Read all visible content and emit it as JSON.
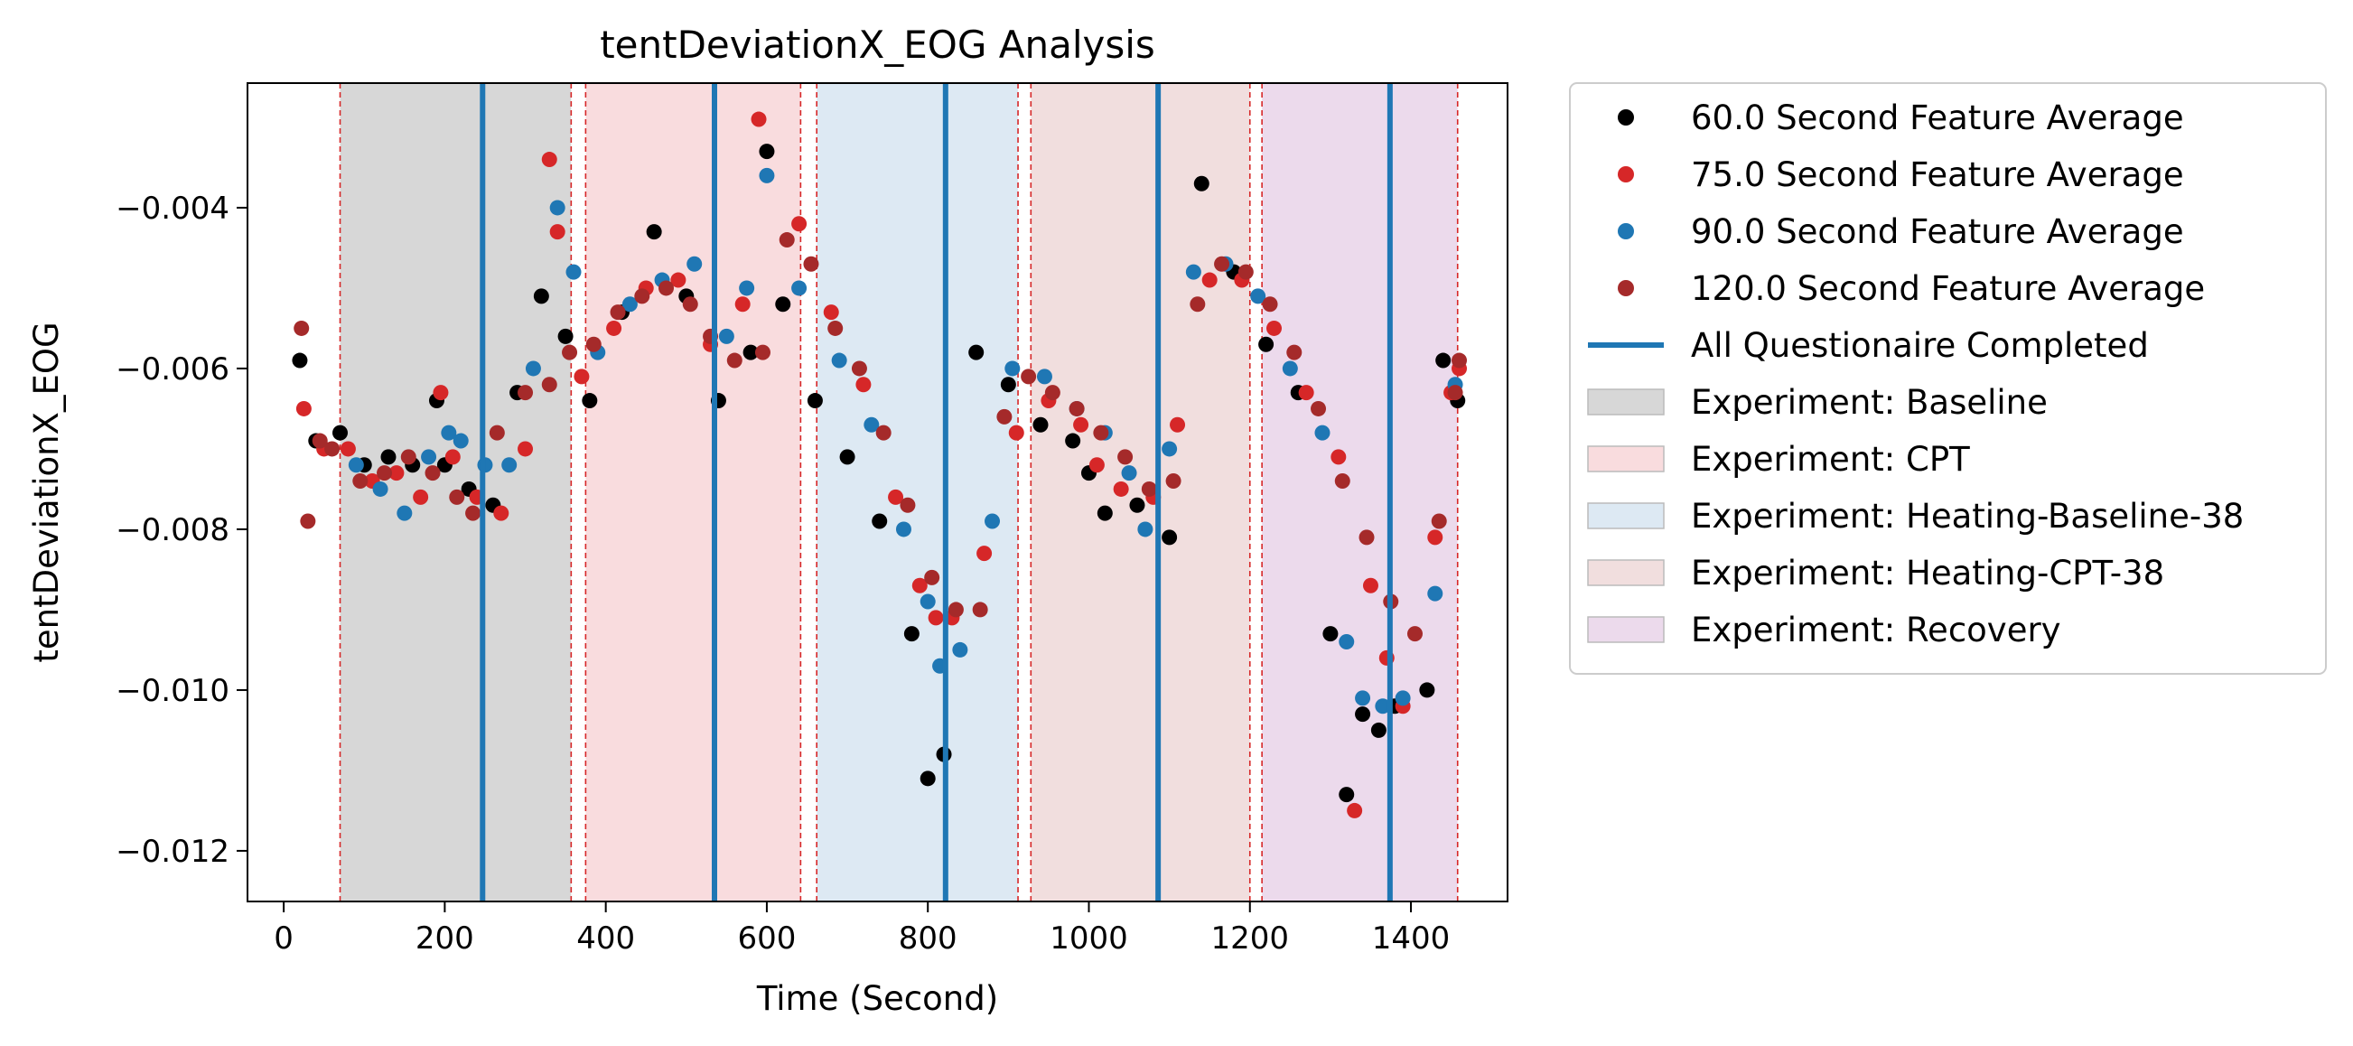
{
  "chart_data": {
    "type": "scatter",
    "title": "tentDeviationX_EOG Analysis",
    "xlabel": "Time (Second)",
    "ylabel": "tentDeviationX_EOG",
    "xlim": [
      -45,
      1520
    ],
    "ylim": [
      -0.01263,
      -0.00245
    ],
    "xticks": [
      0,
      200,
      400,
      600,
      800,
      1000,
      1200,
      1400
    ],
    "yticks": [
      -0.012,
      -0.01,
      -0.008,
      -0.006,
      -0.004
    ],
    "xtick_labels": [
      "0",
      "200",
      "400",
      "600",
      "800",
      "1000",
      "1200",
      "1400"
    ],
    "ytick_labels": [
      "−0.012",
      "−0.010",
      "−0.008",
      "−0.006",
      "−0.004"
    ],
    "grid": false,
    "legend_position": "outside-right",
    "phases": [
      {
        "label": "Experiment: Baseline",
        "start": 70,
        "end": 357,
        "color": "#d7d7d7"
      },
      {
        "label": "Experiment: CPT",
        "start": 375,
        "end": 642,
        "color": "#f9dcde"
      },
      {
        "label": "Experiment: Heating-Baseline-38",
        "start": 662,
        "end": 912,
        "color": "#dde9f3"
      },
      {
        "label": "Experiment: Heating-CPT-38",
        "start": 928,
        "end": 1200,
        "color": "#f1dede"
      },
      {
        "label": "Experiment: Recovery",
        "start": 1215,
        "end": 1458,
        "color": "#ecdaec"
      }
    ],
    "phase_boundaries": [
      70,
      357,
      375,
      642,
      662,
      912,
      928,
      1200,
      1215,
      1458
    ],
    "phase_boundary_color": "#d62728",
    "questionnaire_completed": {
      "label": "All Questionaire Completed",
      "x": [
        247,
        535,
        822,
        1086,
        1374
      ],
      "color": "#1f77b4"
    },
    "series": [
      {
        "name": "60.0 Second Feature Average",
        "color": "#000000",
        "x": [
          20,
          40,
          70,
          100,
          130,
          160,
          190,
          200,
          230,
          260,
          290,
          320,
          350,
          380,
          420,
          460,
          500,
          540,
          580,
          600,
          620,
          660,
          700,
          740,
          780,
          800,
          820,
          860,
          900,
          940,
          980,
          1000,
          1020,
          1060,
          1100,
          1140,
          1180,
          1220,
          1260,
          1300,
          1320,
          1340,
          1360,
          1380,
          1420,
          1440,
          1458
        ],
        "y": [
          -0.0059,
          -0.0069,
          -0.0068,
          -0.0072,
          -0.0071,
          -0.0072,
          -0.0064,
          -0.0072,
          -0.0075,
          -0.0077,
          -0.0063,
          -0.0051,
          -0.0056,
          -0.0064,
          -0.0053,
          -0.0043,
          -0.0051,
          -0.0064,
          -0.0058,
          -0.0033,
          -0.0052,
          -0.0064,
          -0.0071,
          -0.0079,
          -0.0093,
          -0.0111,
          -0.0108,
          -0.0058,
          -0.0062,
          -0.0067,
          -0.0069,
          -0.0073,
          -0.0078,
          -0.0077,
          -0.0081,
          -0.0037,
          -0.0048,
          -0.0057,
          -0.0063,
          -0.0093,
          -0.0113,
          -0.0103,
          -0.0105,
          -0.0102,
          -0.01,
          -0.0059,
          -0.0064
        ]
      },
      {
        "name": "75.0 Second Feature Average",
        "color": "#d62728",
        "x": [
          25,
          50,
          80,
          110,
          140,
          170,
          195,
          210,
          240,
          270,
          300,
          330,
          340,
          370,
          410,
          450,
          490,
          530,
          570,
          590,
          640,
          680,
          720,
          760,
          790,
          810,
          830,
          870,
          910,
          950,
          990,
          1010,
          1040,
          1080,
          1110,
          1150,
          1190,
          1230,
          1270,
          1310,
          1330,
          1350,
          1370,
          1390,
          1430,
          1450,
          1460
        ],
        "y": [
          -0.0065,
          -0.007,
          -0.007,
          -0.0074,
          -0.0073,
          -0.0076,
          -0.0063,
          -0.0071,
          -0.0076,
          -0.0078,
          -0.007,
          -0.0034,
          -0.0043,
          -0.0061,
          -0.0055,
          -0.005,
          -0.0049,
          -0.0057,
          -0.0052,
          -0.0029,
          -0.0042,
          -0.0053,
          -0.0062,
          -0.0076,
          -0.0087,
          -0.0091,
          -0.0091,
          -0.0083,
          -0.0068,
          -0.0064,
          -0.0067,
          -0.0072,
          -0.0075,
          -0.0076,
          -0.0067,
          -0.0049,
          -0.0049,
          -0.0055,
          -0.0063,
          -0.0071,
          -0.0115,
          -0.0087,
          -0.0096,
          -0.0102,
          -0.0081,
          -0.0063,
          -0.006
        ]
      },
      {
        "name": "90.0 Second Feature Average",
        "color": "#1f77b4",
        "x": [
          90,
          120,
          150,
          180,
          205,
          220,
          250,
          280,
          310,
          340,
          360,
          390,
          430,
          470,
          510,
          550,
          575,
          600,
          640,
          690,
          730,
          770,
          800,
          815,
          840,
          880,
          905,
          945,
          985,
          1020,
          1050,
          1070,
          1100,
          1130,
          1170,
          1210,
          1250,
          1290,
          1320,
          1340,
          1365,
          1390,
          1430,
          1455
        ],
        "y": [
          -0.0072,
          -0.0075,
          -0.0078,
          -0.0071,
          -0.0068,
          -0.0069,
          -0.0072,
          -0.0072,
          -0.006,
          -0.004,
          -0.0048,
          -0.0058,
          -0.0052,
          -0.0049,
          -0.0047,
          -0.0056,
          -0.005,
          -0.0036,
          -0.005,
          -0.0059,
          -0.0067,
          -0.008,
          -0.0089,
          -0.0097,
          -0.0095,
          -0.0079,
          -0.006,
          -0.0061,
          -0.0065,
          -0.0068,
          -0.0073,
          -0.008,
          -0.007,
          -0.0048,
          -0.0047,
          -0.0051,
          -0.006,
          -0.0068,
          -0.0094,
          -0.0101,
          -0.0102,
          -0.0101,
          -0.0088,
          -0.0062
        ]
      },
      {
        "name": "120.0 Second Feature Average",
        "color": "#a52a2a",
        "x": [
          22,
          30,
          45,
          60,
          95,
          125,
          155,
          185,
          215,
          235,
          265,
          300,
          330,
          355,
          385,
          415,
          445,
          475,
          505,
          530,
          560,
          595,
          625,
          655,
          685,
          715,
          745,
          775,
          805,
          835,
          865,
          895,
          925,
          955,
          985,
          1015,
          1045,
          1075,
          1105,
          1135,
          1165,
          1195,
          1225,
          1255,
          1285,
          1315,
          1345,
          1375,
          1405,
          1435,
          1455,
          1460
        ],
        "y": [
          -0.0055,
          -0.0079,
          -0.0069,
          -0.007,
          -0.0074,
          -0.0073,
          -0.0071,
          -0.0073,
          -0.0076,
          -0.0078,
          -0.0068,
          -0.0063,
          -0.0062,
          -0.0058,
          -0.0057,
          -0.0053,
          -0.0051,
          -0.005,
          -0.0052,
          -0.0056,
          -0.0059,
          -0.0058,
          -0.0044,
          -0.0047,
          -0.0055,
          -0.006,
          -0.0068,
          -0.0077,
          -0.0086,
          -0.009,
          -0.009,
          -0.0066,
          -0.0061,
          -0.0063,
          -0.0065,
          -0.0068,
          -0.0071,
          -0.0075,
          -0.0074,
          -0.0052,
          -0.0047,
          -0.0048,
          -0.0052,
          -0.0058,
          -0.0065,
          -0.0074,
          -0.0081,
          -0.0089,
          -0.0093,
          -0.0079,
          -0.0063,
          -0.0059
        ]
      }
    ]
  }
}
